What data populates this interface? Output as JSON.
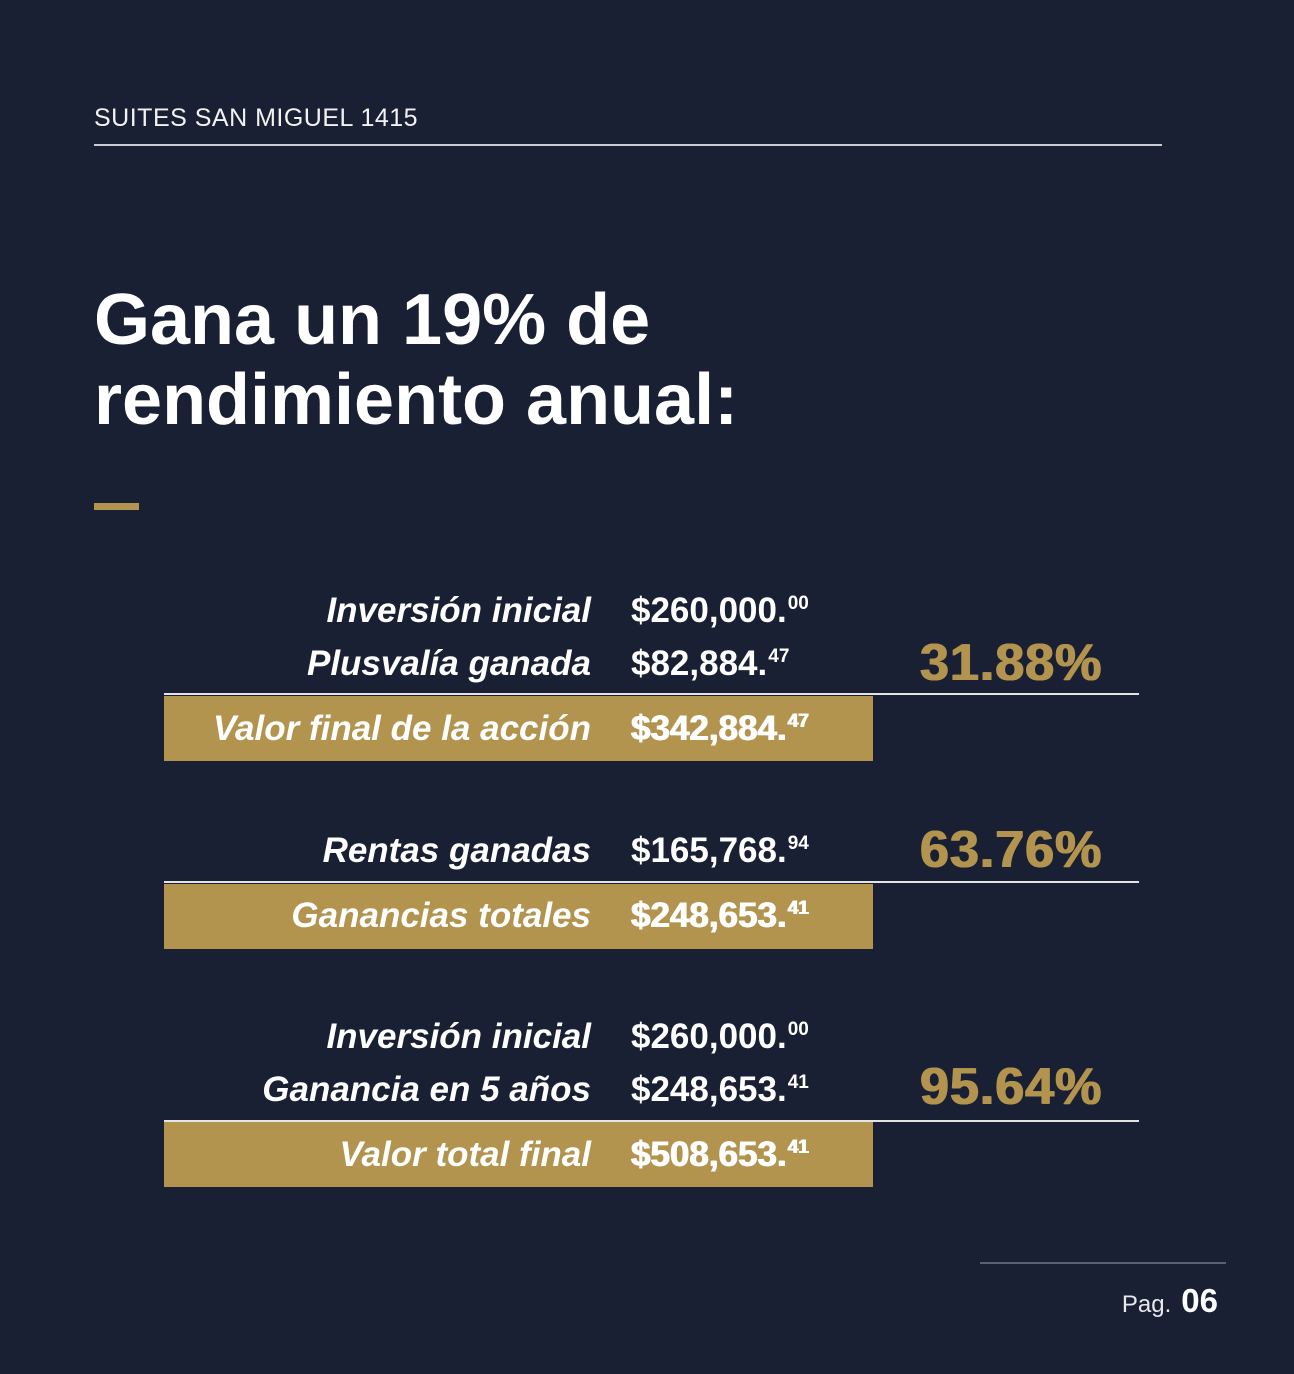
{
  "header": {
    "title": "SUITES SAN MIGUEL 1415"
  },
  "title": {
    "line1": "Gana un 19% de",
    "line2": "rendimiento anual:"
  },
  "colors": {
    "background": "#192034",
    "accent": "#b3944f",
    "text": "#ffffff"
  },
  "sections": [
    {
      "rows": [
        {
          "label": "Inversión inicial",
          "amount": "$260,000.",
          "cents": "00"
        },
        {
          "label": "Plusvalía ganada",
          "amount": "$82,884.",
          "cents": "47"
        }
      ],
      "total": {
        "label": "Valor final de la acción",
        "amount": "$342,884.",
        "cents": "47"
      },
      "percent": "31.88%"
    },
    {
      "rows": [
        {
          "label": "Rentas ganadas",
          "amount": "$165,768.",
          "cents": "94"
        }
      ],
      "total": {
        "label": "Ganancias totales",
        "amount": "$248,653.",
        "cents": "41"
      },
      "percent": "63.76%"
    },
    {
      "rows": [
        {
          "label": "Inversión inicial",
          "amount": "$260,000.",
          "cents": "00"
        },
        {
          "label": "Ganancia en 5 años",
          "amount": "$248,653.",
          "cents": "41"
        }
      ],
      "total": {
        "label": "Valor total final",
        "amount": "$508,653.",
        "cents": "41"
      },
      "percent": "95.64%"
    }
  ],
  "footer": {
    "page_label": "Pag.",
    "page_number": "06"
  }
}
